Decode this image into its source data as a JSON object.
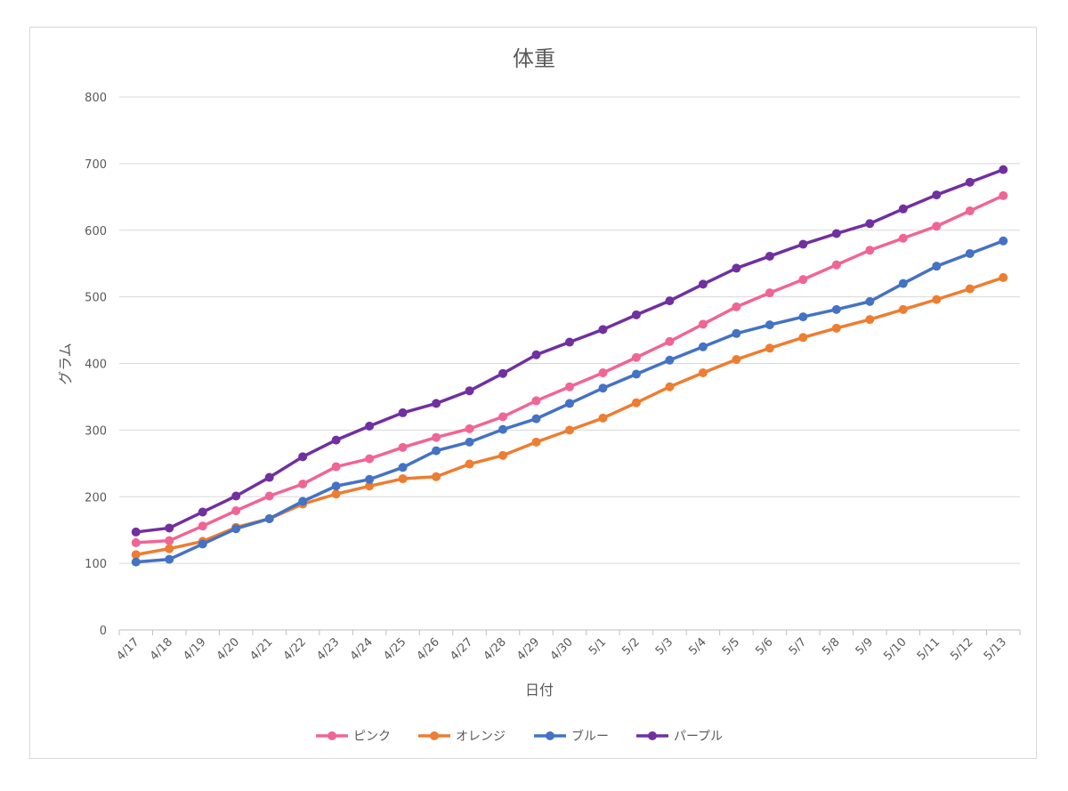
{
  "chart_data": {
    "type": "line",
    "title": "体重",
    "xlabel": "日付",
    "ylabel": "グラム",
    "ylim": [
      0,
      800
    ],
    "yticks": [
      0,
      100,
      200,
      300,
      400,
      500,
      600,
      700,
      800
    ],
    "grid": true,
    "legend_position": "bottom",
    "categories": [
      "4/17",
      "4/18",
      "4/19",
      "4/20",
      "4/21",
      "4/22",
      "4/23",
      "4/24",
      "4/25",
      "4/26",
      "4/27",
      "4/28",
      "4/29",
      "4/30",
      "5/1",
      "5/2",
      "5/3",
      "5/4",
      "5/5",
      "5/6",
      "5/7",
      "5/8",
      "5/9",
      "5/10",
      "5/11",
      "5/12",
      "5/13"
    ],
    "series": [
      {
        "name": "ピンク",
        "color": "#f06595",
        "values": [
          131,
          134,
          156,
          179,
          201,
          219,
          245,
          257,
          274,
          289,
          302,
          320,
          344,
          365,
          386,
          409,
          433,
          459,
          485,
          506,
          526,
          548,
          570,
          588,
          606,
          629,
          652
        ]
      },
      {
        "name": "オレンジ",
        "color": "#ed7d31",
        "values": [
          113,
          122,
          133,
          154,
          167,
          189,
          204,
          216,
          227,
          230,
          249,
          262,
          282,
          300,
          318,
          341,
          365,
          386,
          406,
          423,
          439,
          453,
          466,
          481,
          496,
          512,
          529
        ]
      },
      {
        "name": "ブルー",
        "color": "#4472c4",
        "values": [
          102,
          106,
          129,
          152,
          167,
          193,
          216,
          226,
          244,
          269,
          282,
          301,
          317,
          340,
          363,
          384,
          405,
          425,
          445,
          458,
          470,
          481,
          493,
          520,
          546,
          565,
          584
        ]
      },
      {
        "name": "パープル",
        "color": "#7030a0",
        "values": [
          147,
          153,
          177,
          201,
          229,
          260,
          285,
          306,
          326,
          340,
          359,
          385,
          413,
          432,
          451,
          473,
          494,
          519,
          543,
          561,
          579,
          595,
          610,
          632,
          653,
          672,
          691
        ]
      }
    ]
  }
}
